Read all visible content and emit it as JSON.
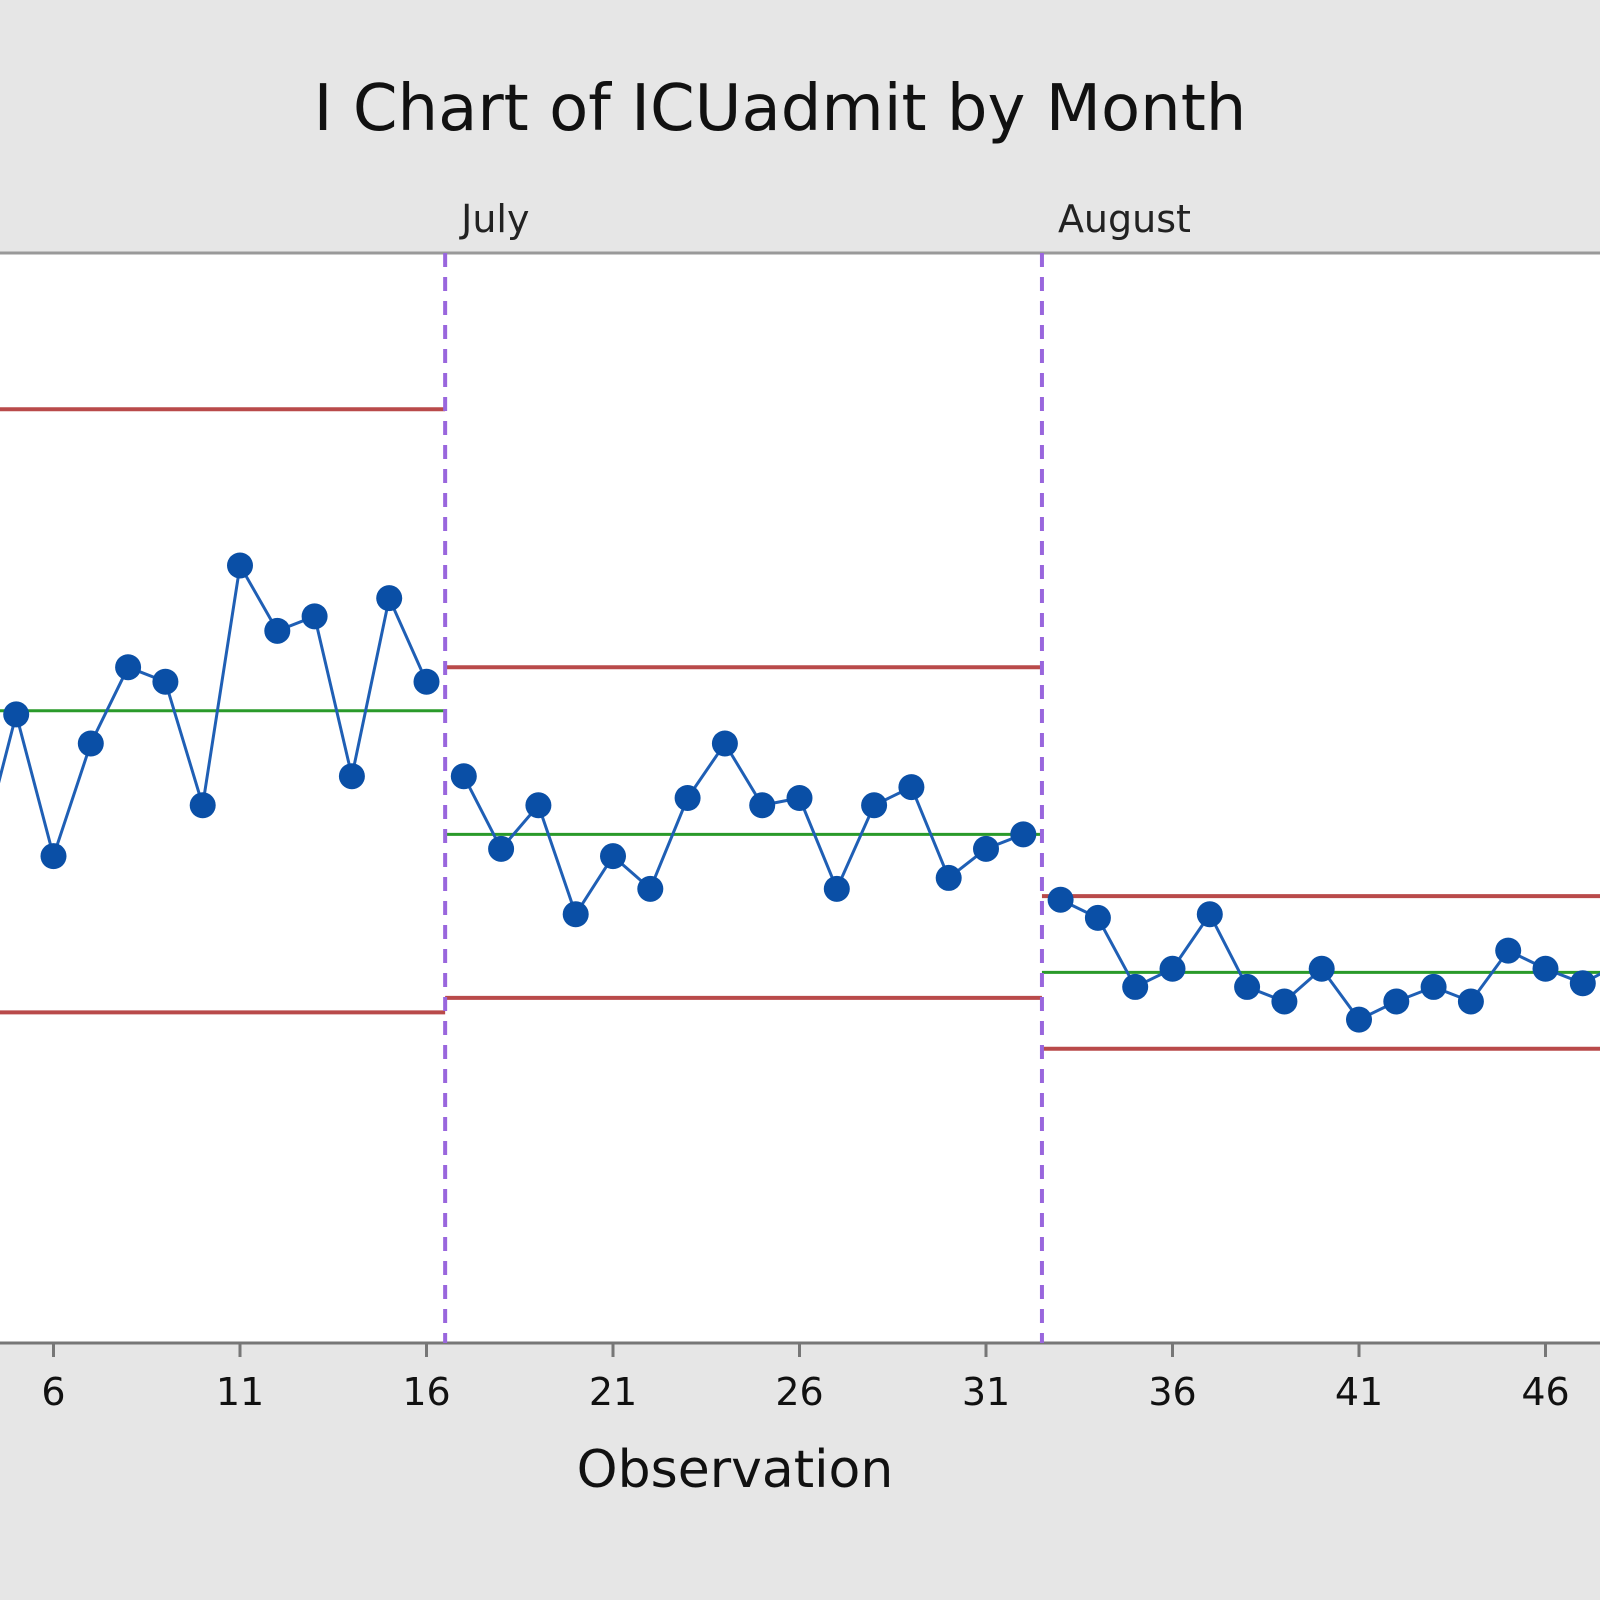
{
  "chart_data": {
    "type": "line",
    "title": "I Chart of ICUadmit by Month",
    "xlabel": "Observation",
    "ylabel": "",
    "xlim": [
      1,
      48
    ],
    "ylim": [
      0,
      30
    ],
    "x_ticks": [
      6,
      11,
      16,
      21,
      26,
      31,
      36,
      41,
      46
    ],
    "stages": [
      {
        "name": "",
        "start": 1,
        "end": 16.5,
        "ucl": 25.7,
        "center": 17.4,
        "lcl": 9.1,
        "x": [
          5,
          6,
          7,
          8,
          9,
          10,
          11,
          12,
          13,
          14,
          15,
          16
        ],
        "values": [
          17.3,
          13.4,
          16.5,
          18.6,
          18.2,
          14.8,
          21.4,
          19.6,
          20.0,
          15.6,
          20.5,
          18.2
        ]
      },
      {
        "name": "July",
        "start": 16.5,
        "end": 32.5,
        "ucl": 18.6,
        "center": 14.0,
        "lcl": 9.5,
        "x": [
          17,
          18,
          19,
          20,
          21,
          22,
          23,
          24,
          25,
          26,
          27,
          28,
          29,
          30,
          31,
          32
        ],
        "values": [
          15.6,
          13.6,
          14.8,
          11.8,
          13.4,
          12.5,
          15.0,
          16.5,
          14.8,
          15.0,
          12.5,
          14.8,
          15.3,
          12.8,
          13.6,
          14.0
        ]
      },
      {
        "name": "August",
        "start": 32.5,
        "end": 48,
        "ucl": 12.3,
        "center": 10.2,
        "lcl": 8.1,
        "x": [
          33,
          34,
          35,
          36,
          37,
          38,
          39,
          40,
          41,
          42,
          43,
          44,
          45,
          46,
          47
        ],
        "values": [
          12.2,
          11.7,
          9.8,
          10.3,
          11.8,
          9.8,
          9.4,
          10.3,
          8.9,
          9.4,
          9.8,
          9.4,
          10.8,
          10.3,
          9.9
        ]
      }
    ],
    "colors": {
      "series": "#1f5fb5",
      "marker": "#0a4fa6",
      "control_limit": "#b94a4a",
      "center_line": "#2a9a2a",
      "stage_divider": "#9966dd",
      "plot_background": "#ffffff",
      "frame_background": "#e6e6e6"
    },
    "grid": false,
    "legend": "none"
  }
}
